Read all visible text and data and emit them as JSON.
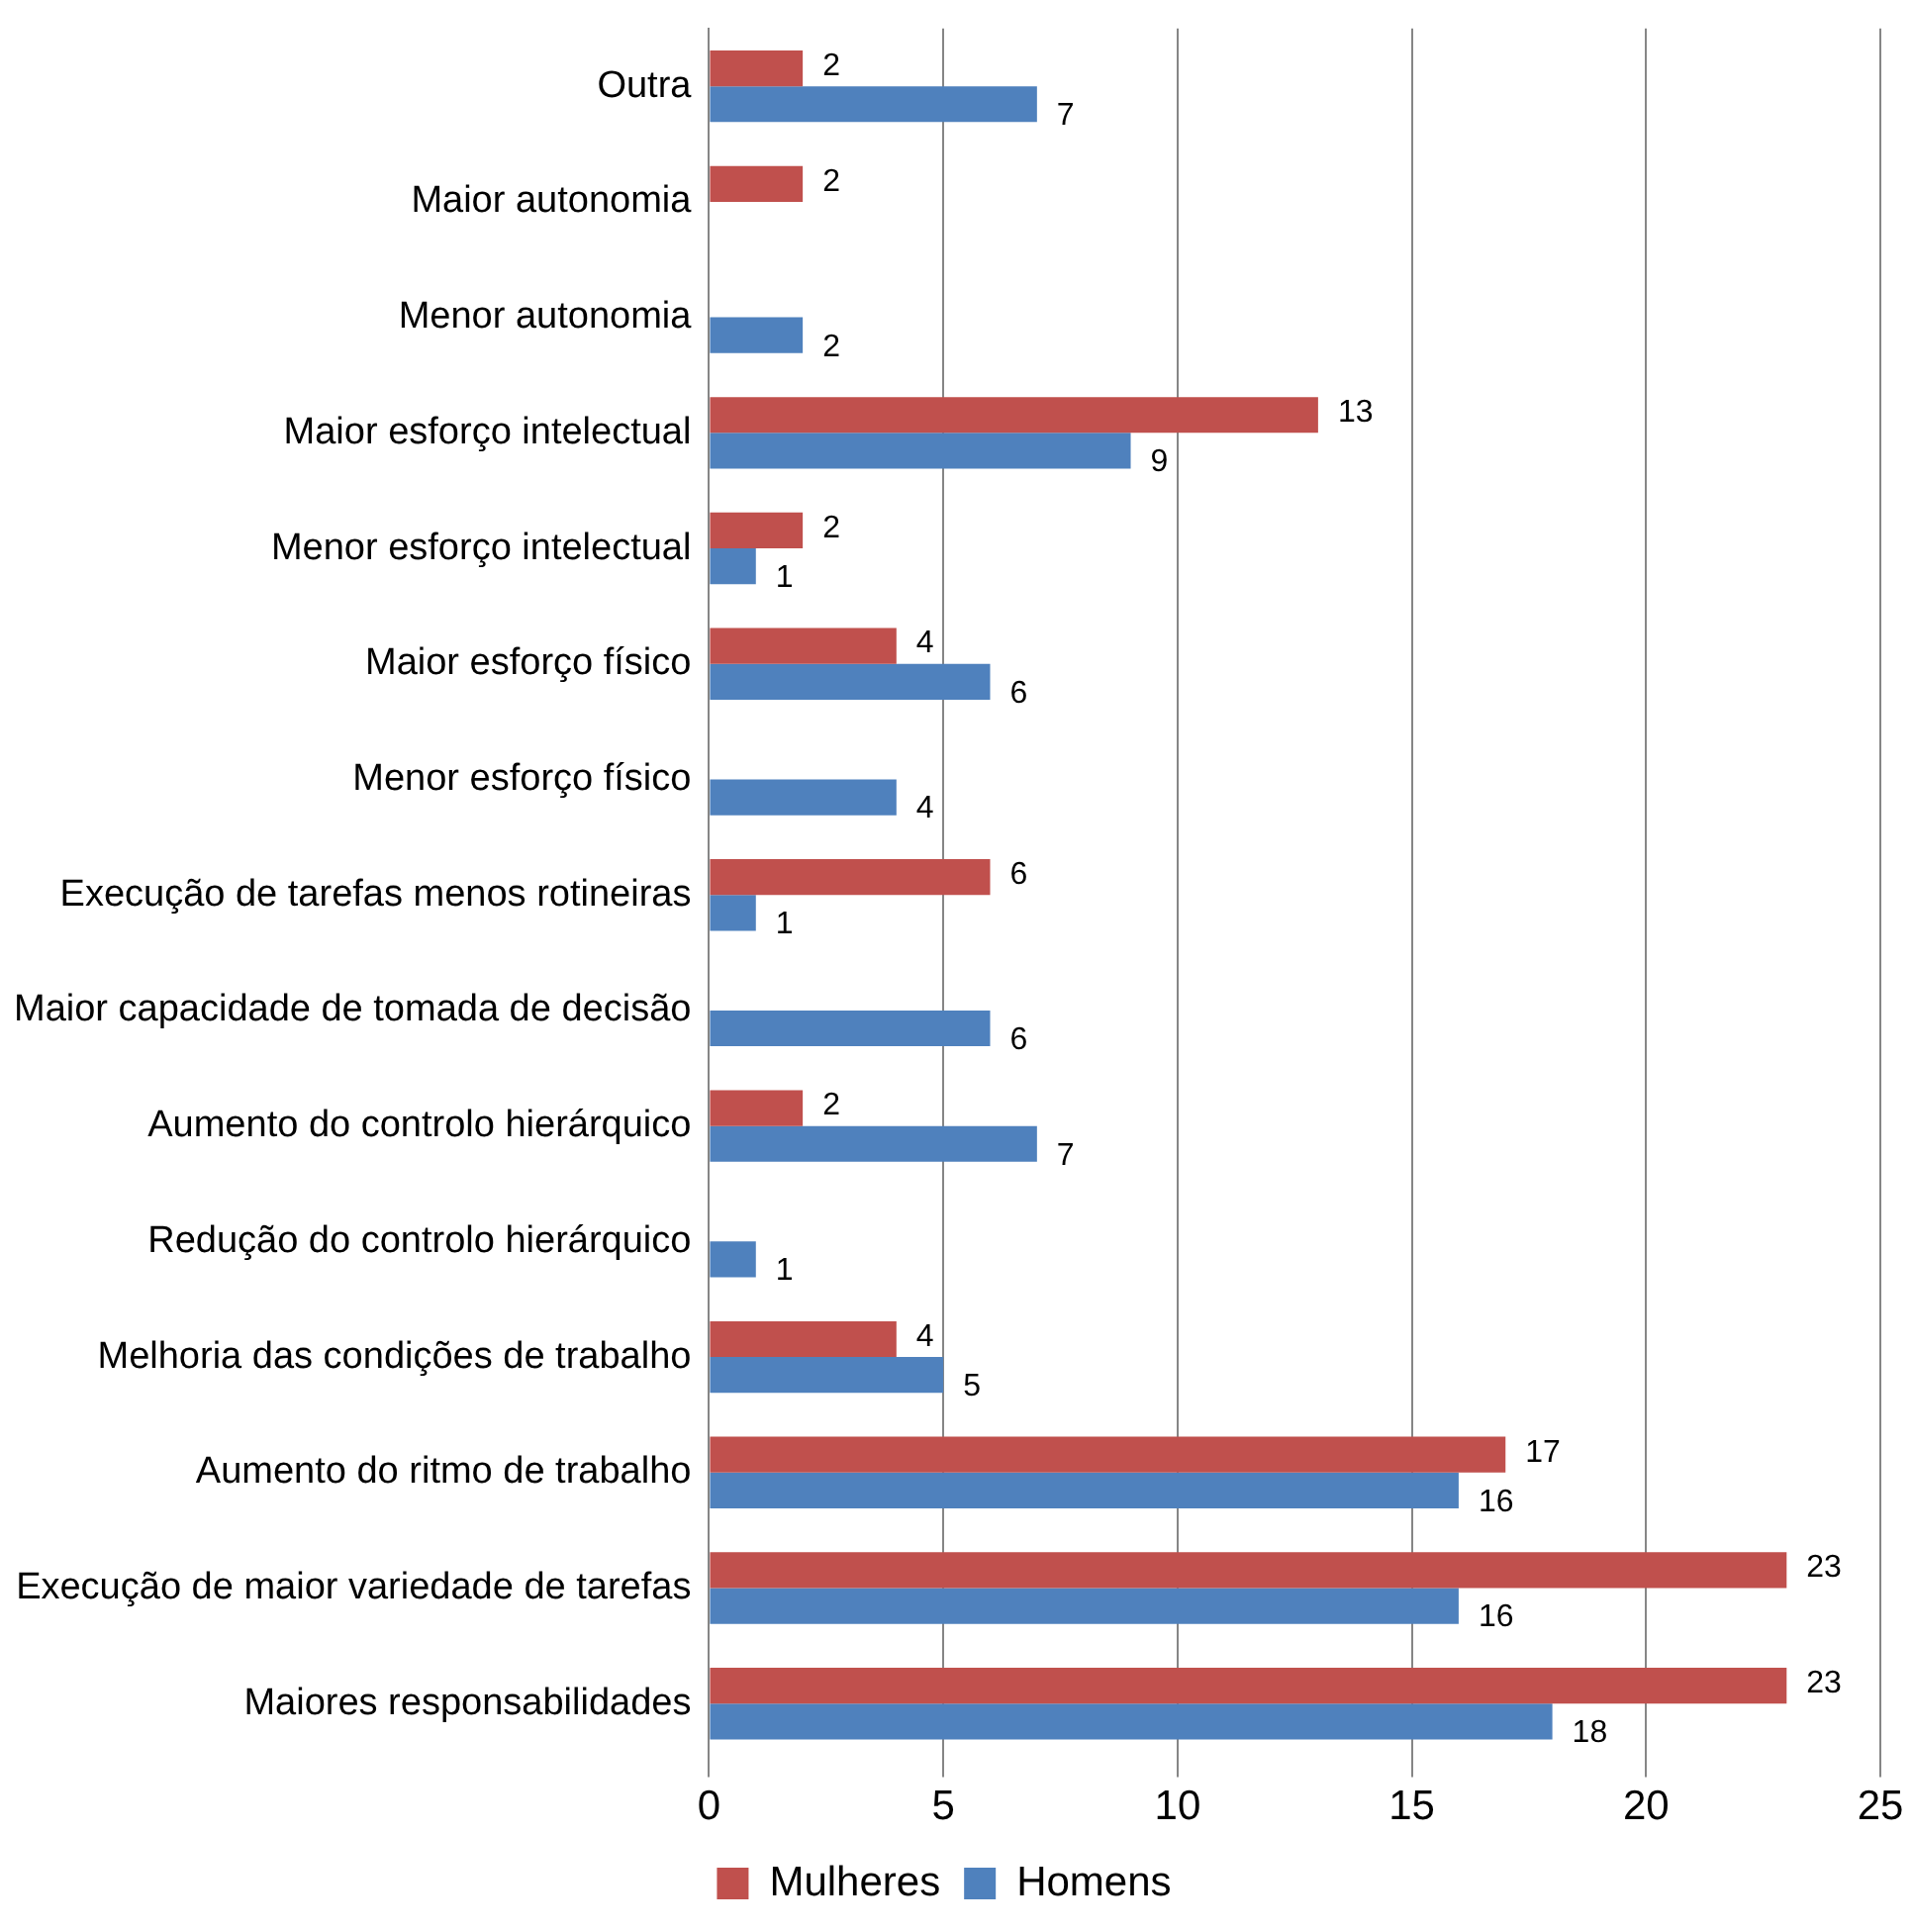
{
  "chart_data": {
    "type": "bar",
    "orientation": "horizontal",
    "categories": [
      "Outra",
      "Maior autonomia",
      "Menor autonomia",
      "Maior esforço intelectual",
      "Menor esforço intelectual",
      "Maior esforço físico",
      "Menor esforço físico",
      "Execução de tarefas menos rotineiras",
      "Maior capacidade de tomada de decisão",
      "Aumento do controlo hierárquico",
      "Redução do controlo hierárquico",
      "Melhoria das condições de trabalho",
      "Aumento do ritmo de trabalho",
      "Execução de maior variedade de tarefas",
      "Maiores responsabilidades"
    ],
    "series": [
      {
        "name": "Mulheres",
        "color": "#c0504d",
        "values": [
          2,
          2,
          null,
          13,
          2,
          4,
          null,
          6,
          null,
          2,
          null,
          4,
          17,
          23,
          23
        ]
      },
      {
        "name": "Homens",
        "color": "#4f81bd",
        "values": [
          7,
          null,
          2,
          9,
          1,
          6,
          4,
          1,
          6,
          7,
          1,
          5,
          16,
          16,
          18
        ]
      }
    ],
    "xlim": [
      0,
      25
    ],
    "xticks": [
      0,
      5,
      10,
      15,
      20,
      25
    ],
    "grid": "x",
    "legend": "bottom",
    "data_labels": true
  }
}
